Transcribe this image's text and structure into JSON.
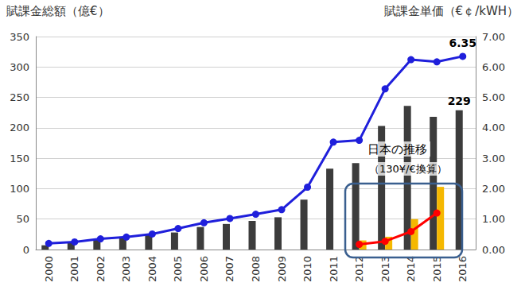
{
  "chart_data": {
    "type": "bar",
    "y_label": "賦課金総額（億€）",
    "y2_label": "賦課金単価（€￠/kWH）",
    "annotations": [
      "日本の推移",
      "（130¥/€換算）"
    ],
    "categories": [
      "2000",
      "2001",
      "2002",
      "2003",
      "2004",
      "2005",
      "2006",
      "2007",
      "2008",
      "2009",
      "2010",
      "2011",
      "2012",
      "2013",
      "2014",
      "2015",
      "2016"
    ],
    "ylim": [
      0,
      350
    ],
    "yticks": [
      0,
      50,
      100,
      150,
      200,
      250,
      300,
      350
    ],
    "y2lim": [
      0,
      7
    ],
    "y2ticks": [
      {
        "value": 0,
        "label": "0.00"
      },
      {
        "value": 1,
        "label": "1.00"
      },
      {
        "value": 2,
        "label": "2.00"
      },
      {
        "value": 3,
        "label": "3.00"
      },
      {
        "value": 4,
        "label": "4.00"
      },
      {
        "value": 5,
        "label": "5.00"
      },
      {
        "value": 6,
        "label": "6.00"
      },
      {
        "value": 7,
        "label": "7.00"
      }
    ],
    "grid": true,
    "series": [
      {
        "type": "bar",
        "axis": "y",
        "color": "#3c3c3c",
        "values": [
          7,
          12,
          17,
          21,
          25,
          28,
          37,
          42,
          47,
          53,
          82,
          133,
          142,
          203,
          236,
          218,
          229
        ],
        "value_labels": [
          null,
          null,
          null,
          null,
          null,
          null,
          null,
          null,
          null,
          null,
          null,
          null,
          null,
          null,
          null,
          null,
          "229"
        ]
      },
      {
        "type": "bar",
        "axis": "y",
        "color": "#f5b800",
        "values": [
          null,
          null,
          null,
          null,
          null,
          null,
          null,
          null,
          null,
          null,
          null,
          null,
          15,
          21,
          50,
          103,
          null
        ]
      },
      {
        "type": "line",
        "axis": "y2",
        "color": "#1f1fdb",
        "marker": "circle",
        "values": [
          0.2,
          0.25,
          0.35,
          0.41,
          0.51,
          0.69,
          0.88,
          1.02,
          1.16,
          1.31,
          2.05,
          3.53,
          3.59,
          5.28,
          6.24,
          6.17,
          6.35
        ],
        "value_labels": [
          null,
          null,
          null,
          null,
          null,
          null,
          null,
          null,
          null,
          null,
          null,
          null,
          null,
          null,
          null,
          null,
          "6.35"
        ]
      },
      {
        "type": "line",
        "axis": "y2",
        "color": "#ff0000",
        "marker": "circle",
        "values": [
          null,
          null,
          null,
          null,
          null,
          null,
          null,
          null,
          null,
          null,
          null,
          null,
          0.17,
          0.27,
          0.59,
          1.2,
          null
        ]
      }
    ]
  }
}
